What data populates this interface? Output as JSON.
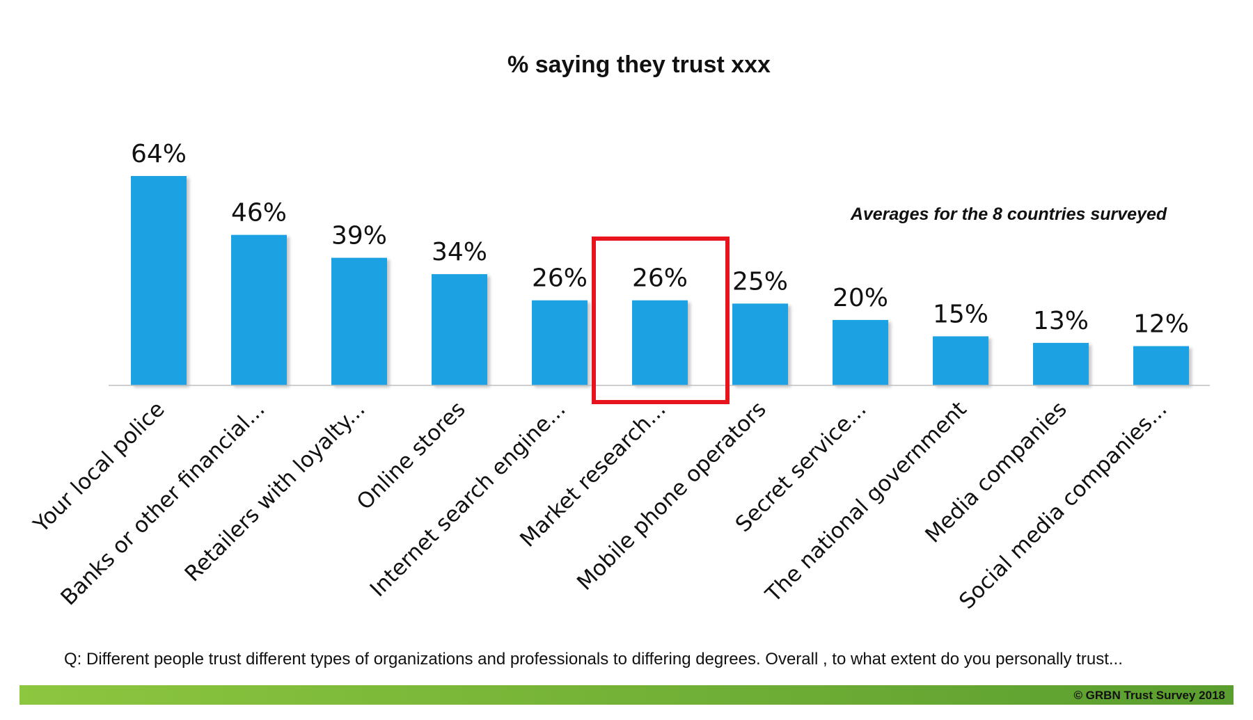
{
  "chart_data": {
    "type": "bar",
    "title": "% saying they trust xxx",
    "annotation": "Averages for the 8 countries surveyed",
    "categories": [
      "Your local police",
      "Banks or other financial...",
      "Retailers with loyalty...",
      "Online stores",
      "Internet search engine...",
      "Market research...",
      "Mobile phone operators",
      "Secret service...",
      "The national government",
      "Media companies",
      "Social media companies..."
    ],
    "values": [
      64,
      46,
      39,
      34,
      26,
      26,
      25,
      20,
      15,
      13,
      12
    ],
    "value_labels": [
      "64%",
      "46%",
      "39%",
      "34%",
      "26%",
      "26%",
      "25%",
      "20%",
      "15%",
      "13%",
      "12%"
    ],
    "highlighted_category": "Market research...",
    "xlabel": "",
    "ylabel": "",
    "ylim": [
      0,
      64
    ],
    "grid": false
  },
  "question": "Q:  Different people trust different types of organizations and professionals to differing degrees. Overall , to what extent do you personally trust...",
  "footer": {
    "copyright": "© GRBN Trust Survey 2018"
  },
  "colors": {
    "bar": "#1ba1e2",
    "highlight_box": "#e8141d",
    "footer_band_start": "#8dc63f",
    "footer_band_end": "#5a9e2f",
    "axis": "#bfbfbf"
  }
}
